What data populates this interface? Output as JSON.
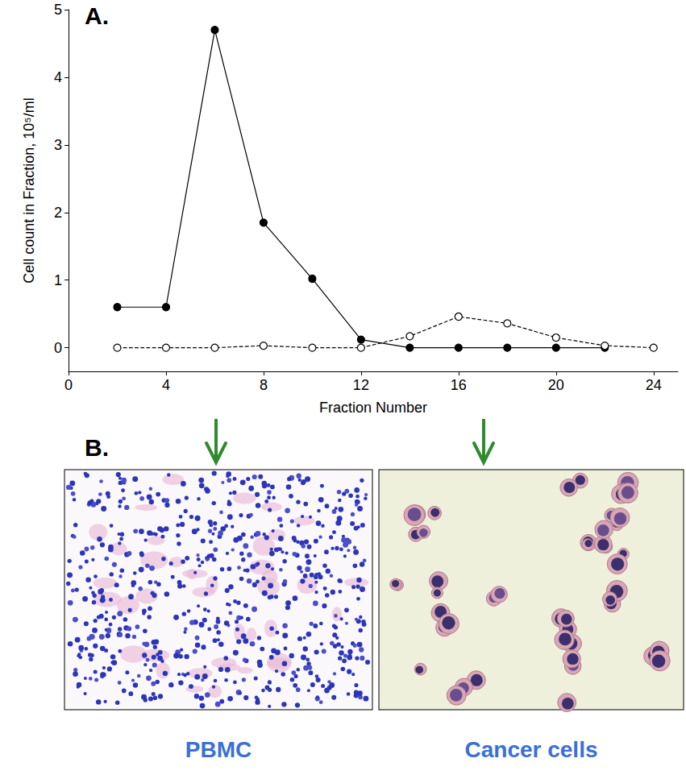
{
  "chart_data": {
    "type": "line",
    "annotations": [
      "A."
    ],
    "x_label": "Fraction Number",
    "y_label": "Cell count in Fraction, 10⁵/ml",
    "x": [
      2,
      4,
      6,
      8,
      10,
      12,
      14,
      16,
      18,
      20,
      22,
      24
    ],
    "series": [
      {
        "color": "#000000",
        "marker": "filled",
        "line_style": "solid",
        "values": [
          0.6,
          0.6,
          4.7,
          1.85,
          1.02,
          0.12,
          0,
          0,
          0,
          0,
          0,
          null
        ]
      },
      {
        "color": "#000000",
        "marker": "open",
        "line_style": "dashed",
        "values": [
          0,
          0,
          0,
          0.03,
          0,
          0,
          0.17,
          0.46,
          0.36,
          0.15,
          0.03,
          0
        ]
      }
    ],
    "xlim": [
      0,
      25
    ],
    "xticks": [
      0,
      4,
      8,
      12,
      16,
      20,
      24
    ],
    "ylim": [
      -0.35,
      5
    ],
    "yticks": [
      0,
      1,
      2,
      3,
      4,
      5
    ],
    "grid": false
  },
  "panel_b": {
    "label": "B.",
    "captions": [
      "PBMC",
      "Cancer cells"
    ]
  }
}
